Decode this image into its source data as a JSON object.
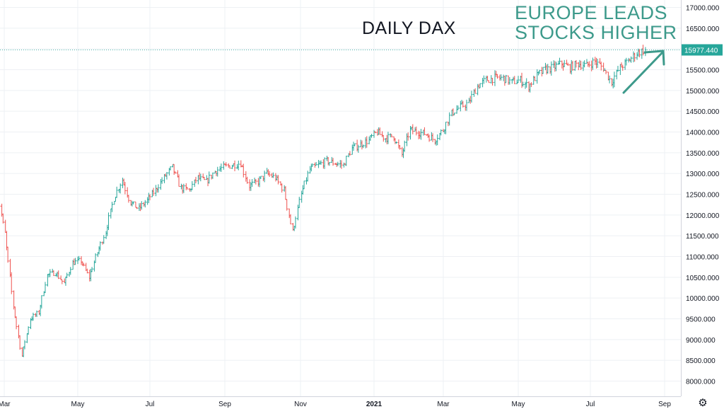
{
  "chart_data": {
    "type": "candlestick",
    "title": "DAILY DAX",
    "annotation": [
      "EUROPE LEADS",
      "STOCKS HIGHER"
    ],
    "annotation_color": "#3d9a8b",
    "up_color": "#26a69a",
    "down_color": "#ef5350",
    "last_price": "15977.440",
    "last_value": 15977.44,
    "ylim": [
      7850,
      17150
    ],
    "y_ticks": [
      "8000.000",
      "8500.000",
      "9000.000",
      "9500.000",
      "10000.000",
      "10500.000",
      "11000.000",
      "11500.000",
      "12000.000",
      "12500.000",
      "13000.000",
      "13500.000",
      "14000.000",
      "14500.000",
      "15000.000",
      "15500.000",
      "16000.000",
      "16500.000",
      "17000.000"
    ],
    "x_ticks": [
      "Mar",
      "May",
      "Jul",
      "Sep",
      "Nov",
      "2021",
      "Mar",
      "May",
      "Jul",
      "Sep"
    ],
    "grid": true,
    "series": [
      {
        "d": "2020-02-24",
        "v": 12700
      },
      {
        "d": "2020-03-02",
        "v": 11550
      },
      {
        "d": "2020-03-09",
        "v": 9800
      },
      {
        "d": "2020-03-16",
        "v": 8600
      },
      {
        "d": "2020-03-23",
        "v": 9500
      },
      {
        "d": "2020-03-30",
        "v": 9650
      },
      {
        "d": "2020-04-06",
        "v": 10550
      },
      {
        "d": "2020-04-13",
        "v": 10620
      },
      {
        "d": "2020-04-20",
        "v": 10350
      },
      {
        "d": "2020-04-27",
        "v": 10850
      },
      {
        "d": "2020-05-04",
        "v": 10900
      },
      {
        "d": "2020-05-11",
        "v": 10500
      },
      {
        "d": "2020-05-18",
        "v": 11100
      },
      {
        "d": "2020-05-25",
        "v": 11600
      },
      {
        "d": "2020-06-01",
        "v": 12400
      },
      {
        "d": "2020-06-08",
        "v": 12850
      },
      {
        "d": "2020-06-15",
        "v": 12300
      },
      {
        "d": "2020-06-22",
        "v": 12150
      },
      {
        "d": "2020-06-29",
        "v": 12350
      },
      {
        "d": "2020-07-06",
        "v": 12600
      },
      {
        "d": "2020-07-13",
        "v": 12900
      },
      {
        "d": "2020-07-20",
        "v": 13150
      },
      {
        "d": "2020-07-27",
        "v": 12650
      },
      {
        "d": "2020-08-03",
        "v": 12600
      },
      {
        "d": "2020-08-10",
        "v": 12900
      },
      {
        "d": "2020-08-17",
        "v": 12800
      },
      {
        "d": "2020-08-24",
        "v": 13050
      },
      {
        "d": "2020-08-31",
        "v": 13150
      },
      {
        "d": "2020-09-07",
        "v": 13200
      },
      {
        "d": "2020-09-14",
        "v": 13250
      },
      {
        "d": "2020-09-21",
        "v": 12700
      },
      {
        "d": "2020-09-28",
        "v": 12800
      },
      {
        "d": "2020-10-05",
        "v": 13000
      },
      {
        "d": "2020-10-12",
        "v": 12900
      },
      {
        "d": "2020-10-19",
        "v": 12600
      },
      {
        "d": "2020-10-26",
        "v": 11600
      },
      {
        "d": "2020-11-02",
        "v": 12500
      },
      {
        "d": "2020-11-09",
        "v": 13100
      },
      {
        "d": "2020-11-16",
        "v": 13200
      },
      {
        "d": "2020-11-23",
        "v": 13300
      },
      {
        "d": "2020-11-30",
        "v": 13250
      },
      {
        "d": "2020-12-07",
        "v": 13200
      },
      {
        "d": "2020-12-14",
        "v": 13600
      },
      {
        "d": "2020-12-21",
        "v": 13700
      },
      {
        "d": "2020-12-28",
        "v": 13800
      },
      {
        "d": "2021-01-04",
        "v": 14000
      },
      {
        "d": "2021-01-11",
        "v": 13850
      },
      {
        "d": "2021-01-18",
        "v": 13900
      },
      {
        "d": "2021-01-25",
        "v": 13450
      },
      {
        "d": "2021-02-01",
        "v": 14050
      },
      {
        "d": "2021-02-08",
        "v": 14000
      },
      {
        "d": "2021-02-15",
        "v": 13950
      },
      {
        "d": "2021-02-22",
        "v": 13800
      },
      {
        "d": "2021-03-01",
        "v": 14050
      },
      {
        "d": "2021-03-08",
        "v": 14450
      },
      {
        "d": "2021-03-15",
        "v": 14600
      },
      {
        "d": "2021-03-22",
        "v": 14700
      },
      {
        "d": "2021-03-29",
        "v": 15100
      },
      {
        "d": "2021-04-05",
        "v": 15250
      },
      {
        "d": "2021-04-12",
        "v": 15300
      },
      {
        "d": "2021-04-19",
        "v": 15300
      },
      {
        "d": "2021-04-26",
        "v": 15200
      },
      {
        "d": "2021-05-03",
        "v": 15250
      },
      {
        "d": "2021-05-10",
        "v": 15100
      },
      {
        "d": "2021-05-17",
        "v": 15350
      },
      {
        "d": "2021-05-24",
        "v": 15500
      },
      {
        "d": "2021-05-31",
        "v": 15550
      },
      {
        "d": "2021-06-07",
        "v": 15650
      },
      {
        "d": "2021-06-14",
        "v": 15550
      },
      {
        "d": "2021-06-21",
        "v": 15650
      },
      {
        "d": "2021-06-28",
        "v": 15600
      },
      {
        "d": "2021-07-05",
        "v": 15700
      },
      {
        "d": "2021-07-12",
        "v": 15550
      },
      {
        "d": "2021-07-19",
        "v": 15200
      },
      {
        "d": "2021-07-26",
        "v": 15550
      },
      {
        "d": "2021-08-02",
        "v": 15700
      },
      {
        "d": "2021-08-09",
        "v": 15900
      },
      {
        "d": "2021-08-16",
        "v": 15977
      }
    ]
  },
  "settings_icon": "gear-icon"
}
